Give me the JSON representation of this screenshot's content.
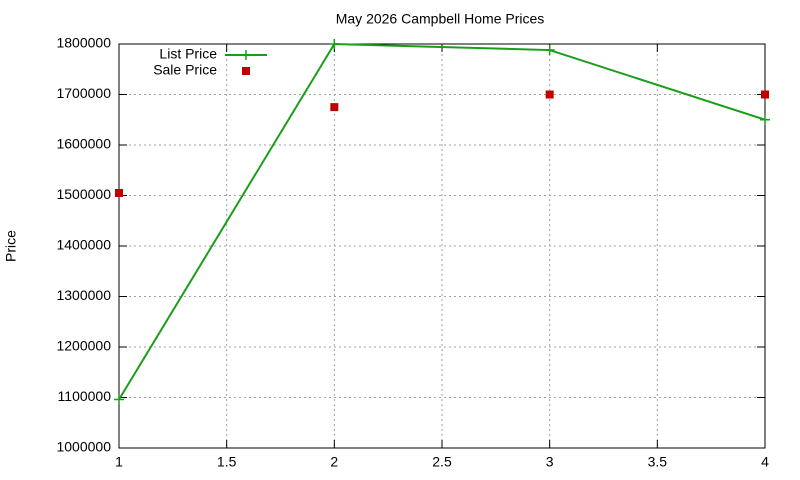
{
  "chart_data": {
    "type": "line",
    "title": "May 2026 Campbell Home Prices",
    "y_label": "Price",
    "x": [
      1,
      2,
      3,
      4
    ],
    "series": [
      {
        "name": "List Price",
        "color": "#1a9e1a",
        "style": "linespoints",
        "values": [
          1096000,
          1800000,
          1788000,
          1650000
        ]
      },
      {
        "name": "Sale Price",
        "color": "#c00000",
        "style": "points",
        "values": [
          1505000,
          1675000,
          1700000,
          1700000
        ]
      }
    ],
    "xlim": [
      1,
      4
    ],
    "xticks": [
      1,
      1.5,
      2,
      2.5,
      3,
      3.5,
      4
    ],
    "ylim": [
      1000000,
      1800000
    ],
    "yticks": [
      1000000,
      1100000,
      1200000,
      1300000,
      1400000,
      1500000,
      1600000,
      1700000,
      1800000
    ],
    "grid": true,
    "legend": "top-left"
  }
}
